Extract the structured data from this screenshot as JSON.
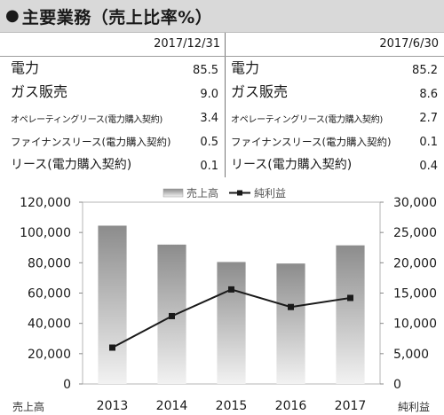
{
  "title": "主要業務（売上比率%）",
  "dates": {
    "left": "2017/12/31",
    "right": "2017/6/30"
  },
  "table_left": [
    {
      "label": "電力",
      "value": "85.5"
    },
    {
      "label": "ガス販売",
      "value": "9.0"
    },
    {
      "label": "オペレーティングリース(電力購入契約)",
      "value": "3.4"
    },
    {
      "label": "ファイナンスリース(電力購入契約)",
      "value": "0.5"
    },
    {
      "label": "リース(電力購入契約)",
      "value": "0.1"
    }
  ],
  "table_right": [
    {
      "label": "電力",
      "value": "85.2"
    },
    {
      "label": "ガス販売",
      "value": "8.6"
    },
    {
      "label": "オペレーティングリース(電力購入契約)",
      "value": "2.7"
    },
    {
      "label": "ファイナンスリース(電力購入契約)",
      "value": "0.1"
    },
    {
      "label": "リース(電力購入契約)",
      "value": "0.4"
    }
  ],
  "chart_data": {
    "type": "bar",
    "categories": [
      "2013",
      "2014",
      "2015",
      "2016",
      "2017"
    ],
    "series": [
      {
        "name": "売上高",
        "type": "bar",
        "axis": "left",
        "values": [
          104500,
          92000,
          80500,
          79500,
          91500
        ]
      },
      {
        "name": "純利益",
        "type": "line",
        "axis": "right",
        "values": [
          6000,
          11200,
          15600,
          12700,
          14200
        ]
      }
    ],
    "ylabel_left": "売上高",
    "ylabel_right": "純利益",
    "ylim_left": [
      0,
      120000
    ],
    "ylim_right": [
      0,
      30000
    ],
    "yticks_left": [
      "0",
      "20,000",
      "40,000",
      "60,000",
      "80,000",
      "100,000",
      "120,000"
    ],
    "yticks_right": [
      "0",
      "5,000",
      "10,000",
      "15,000",
      "20,000",
      "25,000",
      "30,000"
    ],
    "grid": false,
    "legend": "top-center"
  }
}
